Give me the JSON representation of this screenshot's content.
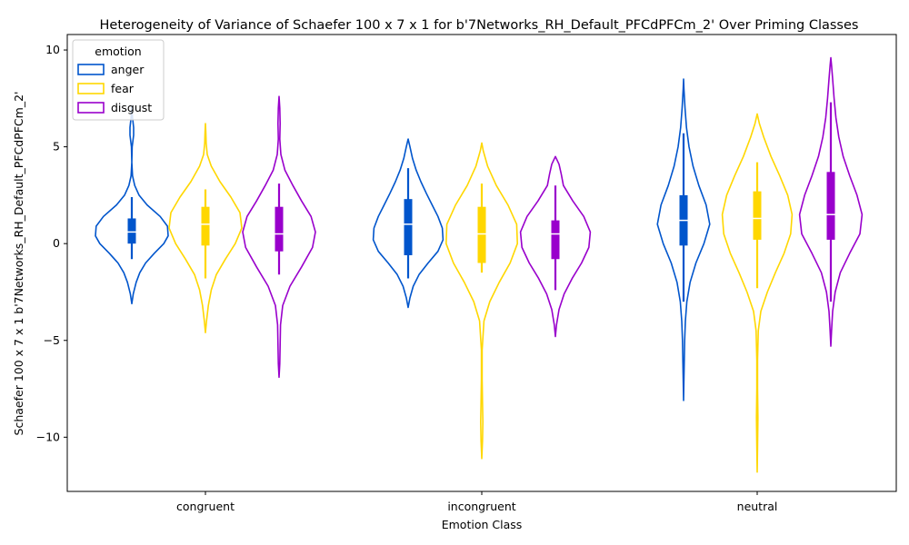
{
  "chart_data": {
    "type": "violin",
    "title": "Heterogeneity of Variance of Schaefer 100 x 7 x 1 for b'7Networks_RH_Default_PFCdPFCm_2' Over Priming Classes",
    "xlabel": "Emotion Class",
    "ylabel": "Schaefer 100 x 7 x 1 b'7Networks_RH_Default_PFCdPFCm_2'",
    "categories": [
      "congruent",
      "incongruent",
      "neutral"
    ],
    "ylim": [
      -12.8,
      10.8
    ],
    "yticks": [
      -10,
      -5,
      0,
      5,
      10
    ],
    "yticklabels": [
      "−10",
      "−5",
      "0",
      "5",
      "10"
    ],
    "legend": {
      "title": "emotion",
      "placement": "upper-left",
      "entries": [
        "anger",
        "fear",
        "disgust"
      ]
    },
    "series": [
      {
        "name": "anger",
        "color": "#0055cc",
        "groups": [
          {
            "category": "congruent",
            "min": -3.1,
            "max": 7.1,
            "q1": 0.0,
            "median": 0.6,
            "q3": 1.3,
            "whisker_low": -0.8,
            "whisker_high": 2.4,
            "density": [
              [
                -3.1,
                0.0
              ],
              [
                -2.6,
                0.04
              ],
              [
                -2.0,
                0.12
              ],
              [
                -1.5,
                0.22
              ],
              [
                -1.0,
                0.38
              ],
              [
                -0.5,
                0.62
              ],
              [
                0.0,
                0.88
              ],
              [
                0.4,
                1.0
              ],
              [
                0.9,
                0.98
              ],
              [
                1.4,
                0.78
              ],
              [
                2.0,
                0.42
              ],
              [
                2.5,
                0.2
              ],
              [
                3.0,
                0.08
              ],
              [
                3.5,
                0.02
              ],
              [
                4.2,
                0.0
              ],
              [
                5.0,
                0.01
              ],
              [
                5.6,
                0.05
              ],
              [
                6.0,
                0.05
              ],
              [
                6.5,
                0.02
              ],
              [
                7.1,
                0.0
              ]
            ]
          },
          {
            "category": "incongruent",
            "min": -3.3,
            "max": 5.4,
            "q1": -0.6,
            "median": 1.0,
            "q3": 2.3,
            "whisker_low": -1.8,
            "whisker_high": 3.9,
            "density": [
              [
                -3.3,
                0.0
              ],
              [
                -2.8,
                0.05
              ],
              [
                -2.2,
                0.14
              ],
              [
                -1.6,
                0.3
              ],
              [
                -1.0,
                0.55
              ],
              [
                -0.4,
                0.82
              ],
              [
                0.2,
                0.96
              ],
              [
                0.8,
                0.94
              ],
              [
                1.4,
                0.82
              ],
              [
                2.0,
                0.66
              ],
              [
                2.6,
                0.5
              ],
              [
                3.2,
                0.35
              ],
              [
                3.8,
                0.22
              ],
              [
                4.4,
                0.12
              ],
              [
                5.0,
                0.05
              ],
              [
                5.4,
                0.0
              ]
            ]
          },
          {
            "category": "neutral",
            "min": -8.1,
            "max": 8.5,
            "q1": -0.1,
            "median": 1.2,
            "q3": 2.5,
            "whisker_low": -3.0,
            "whisker_high": 5.7,
            "density": [
              [
                -8.1,
                0.0
              ],
              [
                -7.0,
                0.01
              ],
              [
                -6.0,
                0.02
              ],
              [
                -5.0,
                0.03
              ],
              [
                -4.0,
                0.05
              ],
              [
                -3.0,
                0.09
              ],
              [
                -2.0,
                0.18
              ],
              [
                -1.0,
                0.34
              ],
              [
                0.0,
                0.56
              ],
              [
                1.0,
                0.72
              ],
              [
                2.0,
                0.62
              ],
              [
                3.0,
                0.42
              ],
              [
                4.0,
                0.26
              ],
              [
                5.0,
                0.15
              ],
              [
                6.0,
                0.08
              ],
              [
                7.0,
                0.04
              ],
              [
                8.0,
                0.01
              ],
              [
                8.5,
                0.0
              ]
            ]
          }
        ]
      },
      {
        "name": "fear",
        "color": "#ffd700",
        "groups": [
          {
            "category": "congruent",
            "min": -4.6,
            "max": 6.2,
            "q1": -0.1,
            "median": 1.0,
            "q3": 1.9,
            "whisker_low": -1.8,
            "whisker_high": 2.8,
            "density": [
              [
                -4.6,
                0.0
              ],
              [
                -4.0,
                0.03
              ],
              [
                -3.2,
                0.08
              ],
              [
                -2.4,
                0.16
              ],
              [
                -1.6,
                0.3
              ],
              [
                -0.8,
                0.55
              ],
              [
                0.0,
                0.82
              ],
              [
                0.8,
                1.0
              ],
              [
                1.6,
                0.95
              ],
              [
                2.4,
                0.7
              ],
              [
                3.2,
                0.4
              ],
              [
                4.0,
                0.16
              ],
              [
                4.6,
                0.05
              ],
              [
                5.2,
                0.02
              ],
              [
                5.8,
                0.01
              ],
              [
                6.2,
                0.0
              ]
            ]
          },
          {
            "category": "incongruent",
            "min": -11.1,
            "max": 5.2,
            "q1": -1.0,
            "median": 0.5,
            "q3": 1.9,
            "whisker_low": -1.5,
            "whisker_high": 3.1,
            "density": [
              [
                -11.1,
                0.0
              ],
              [
                -10.2,
                0.02
              ],
              [
                -9.2,
                0.03
              ],
              [
                -8.2,
                0.02
              ],
              [
                -7.0,
                0.01
              ],
              [
                -5.5,
                0.01
              ],
              [
                -4.0,
                0.06
              ],
              [
                -3.0,
                0.22
              ],
              [
                -2.0,
                0.48
              ],
              [
                -1.0,
                0.78
              ],
              [
                0.0,
                0.98
              ],
              [
                1.0,
                0.96
              ],
              [
                2.0,
                0.72
              ],
              [
                3.0,
                0.4
              ],
              [
                4.0,
                0.16
              ],
              [
                4.8,
                0.04
              ],
              [
                5.2,
                0.0
              ]
            ]
          },
          {
            "category": "neutral",
            "min": -11.8,
            "max": 6.7,
            "q1": 0.2,
            "median": 1.3,
            "q3": 2.7,
            "whisker_low": -2.3,
            "whisker_high": 4.2,
            "density": [
              [
                -11.8,
                0.0
              ],
              [
                -10.5,
                0.01
              ],
              [
                -9.0,
                0.02
              ],
              [
                -7.5,
                0.01
              ],
              [
                -6.0,
                0.01
              ],
              [
                -4.5,
                0.03
              ],
              [
                -3.5,
                0.1
              ],
              [
                -2.5,
                0.28
              ],
              [
                -1.5,
                0.5
              ],
              [
                -0.5,
                0.74
              ],
              [
                0.5,
                0.92
              ],
              [
                1.5,
                0.96
              ],
              [
                2.5,
                0.84
              ],
              [
                3.5,
                0.62
              ],
              [
                4.5,
                0.38
              ],
              [
                5.5,
                0.18
              ],
              [
                6.2,
                0.06
              ],
              [
                6.7,
                0.0
              ]
            ]
          }
        ]
      },
      {
        "name": "disgust",
        "color": "#9900cc",
        "groups": [
          {
            "category": "congruent",
            "min": -6.9,
            "max": 7.6,
            "q1": -0.4,
            "median": 0.5,
            "q3": 1.9,
            "whisker_low": -1.6,
            "whisker_high": 3.1,
            "density": [
              [
                -6.9,
                0.0
              ],
              [
                -6.2,
                0.02
              ],
              [
                -5.2,
                0.03
              ],
              [
                -4.2,
                0.04
              ],
              [
                -3.2,
                0.1
              ],
              [
                -2.2,
                0.3
              ],
              [
                -1.2,
                0.62
              ],
              [
                -0.2,
                0.92
              ],
              [
                0.6,
                1.0
              ],
              [
                1.4,
                0.88
              ],
              [
                2.2,
                0.62
              ],
              [
                3.0,
                0.38
              ],
              [
                3.8,
                0.16
              ],
              [
                4.6,
                0.05
              ],
              [
                5.4,
                0.02
              ],
              [
                6.2,
                0.03
              ],
              [
                7.0,
                0.02
              ],
              [
                7.6,
                0.0
              ]
            ]
          },
          {
            "category": "incongruent",
            "min": -4.8,
            "max": 4.5,
            "q1": -0.8,
            "median": 0.5,
            "q3": 1.2,
            "whisker_low": -2.4,
            "whisker_high": 3.0,
            "density": [
              [
                -4.8,
                0.0
              ],
              [
                -4.2,
                0.03
              ],
              [
                -3.4,
                0.1
              ],
              [
                -2.6,
                0.24
              ],
              [
                -1.8,
                0.46
              ],
              [
                -1.0,
                0.72
              ],
              [
                -0.2,
                0.92
              ],
              [
                0.6,
                0.96
              ],
              [
                1.4,
                0.78
              ],
              [
                2.2,
                0.48
              ],
              [
                3.0,
                0.22
              ],
              [
                3.6,
                0.16
              ],
              [
                4.1,
                0.1
              ],
              [
                4.5,
                0.0
              ]
            ]
          },
          {
            "category": "neutral",
            "min": -5.3,
            "max": 9.6,
            "q1": 0.2,
            "median": 1.5,
            "q3": 3.7,
            "whisker_low": -3.0,
            "whisker_high": 7.3,
            "density": [
              [
                -5.3,
                0.0
              ],
              [
                -4.5,
                0.02
              ],
              [
                -3.5,
                0.05
              ],
              [
                -2.5,
                0.12
              ],
              [
                -1.5,
                0.26
              ],
              [
                -0.5,
                0.52
              ],
              [
                0.5,
                0.8
              ],
              [
                1.5,
                0.86
              ],
              [
                2.5,
                0.72
              ],
              [
                3.5,
                0.52
              ],
              [
                4.5,
                0.34
              ],
              [
                5.5,
                0.22
              ],
              [
                6.5,
                0.14
              ],
              [
                7.5,
                0.09
              ],
              [
                8.5,
                0.05
              ],
              [
                9.2,
                0.02
              ],
              [
                9.6,
                0.0
              ]
            ]
          }
        ]
      }
    ]
  }
}
